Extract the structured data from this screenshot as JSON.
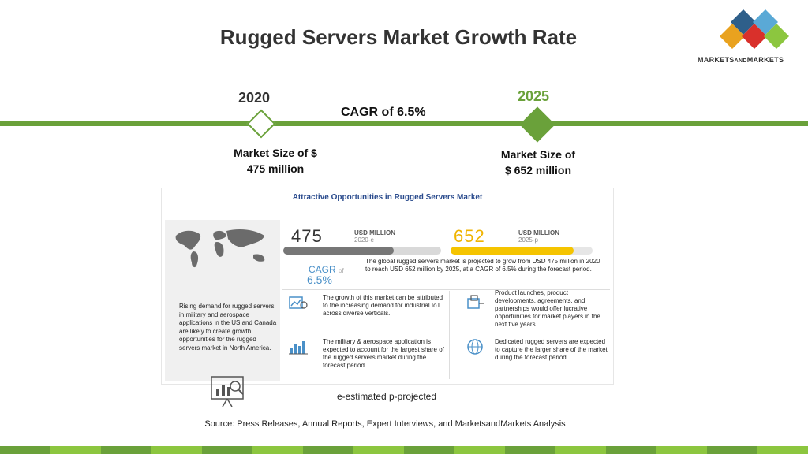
{
  "title": "Rugged Servers Market Growth Rate",
  "logo": {
    "text_main": "MARKETS",
    "text_and": "AND",
    "text_end": "MARKETS"
  },
  "timeline": {
    "year_start": "2020",
    "year_end": "2025",
    "cagr": "CAGR of 6.5%",
    "market_start_line1": "Market Size of $",
    "market_start_line2": "475 million",
    "market_end_line1": "Market Size of",
    "market_end_line2": "$ 652 million"
  },
  "panel": {
    "title": "Attractive Opportunities in Rugged Servers Market",
    "left_text": "Rising demand for rugged servers in military and aerospace applications in the US and Canada are likely to create growth opportunities for the rugged servers market in North America.",
    "value_2020": "475",
    "usd_2020": "USD MILLION",
    "usd_2020_sub": "2020-e",
    "value_2025": "652",
    "usd_2025": "USD MILLION",
    "usd_2025_sub": "2025-p",
    "cagr_label": "CAGR",
    "cagr_of": "of",
    "cagr_value": "6.5%",
    "description": "The global rugged servers market is projected to grow from USD 475 million in 2020 to reach USD 652 million by 2025, at a CAGR of 6.5% during the forecast period.",
    "item1": "The growth of this market can be attributed to the increasing demand for industrial IoT across diverse verticals.",
    "item2": "The military & aerospace application is expected to account for the largest share of the rugged servers market during the forecast period.",
    "item3": "Product launches, product developments, agreements, and partnerships would offer lucrative opportunities for market players in the next five years.",
    "item4": "Dedicated rugged servers are expected to capture the larger share of the market during the forecast period."
  },
  "footnote": "e-estimated p-projected",
  "source": "Source: Press Releases, Annual Reports, Expert Interviews, and MarketsandMarkets Analysis",
  "colors": {
    "green": "#6aa13a",
    "yellow": "#f5c400",
    "blue": "#4a90c8",
    "navy": "#2a4b8d"
  }
}
